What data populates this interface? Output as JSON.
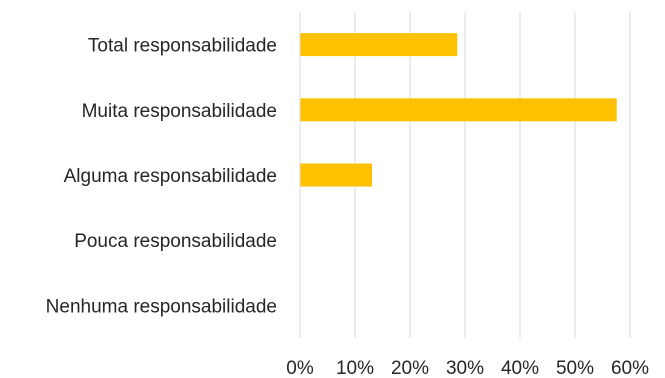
{
  "chart_data": {
    "type": "bar",
    "orientation": "horizontal",
    "title": "",
    "xlabel": "",
    "ylabel": "",
    "categories": [
      "Total responsabilidade",
      "Muita responsabilidade",
      "Alguma responsabilidade",
      "Pouca responsabilidade",
      "Nenhuma responsabilidade"
    ],
    "values": [
      0.285,
      0.575,
      0.13,
      0,
      0
    ],
    "xlim": [
      0,
      0.6
    ],
    "xticks": [
      0,
      0.1,
      0.2,
      0.3,
      0.4,
      0.5,
      0.6
    ],
    "xtick_labels": [
      "0%",
      "10%",
      "20%",
      "30%",
      "40%",
      "50%",
      "60%"
    ],
    "bar_color": "#FFC000",
    "gridline_color": "#D9D9D9",
    "grid": true,
    "legend": "none"
  }
}
